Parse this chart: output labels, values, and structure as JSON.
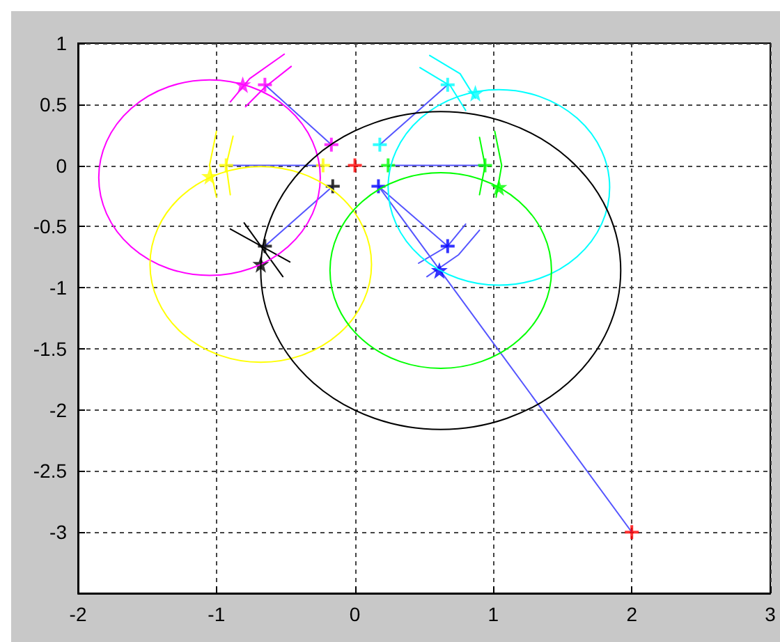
{
  "chart_data": {
    "type": "line",
    "xlim": [
      -2,
      3
    ],
    "ylim": [
      -3.5,
      1
    ],
    "xticks": [
      -2,
      -1,
      0,
      1,
      2,
      3
    ],
    "yticks": [
      -3,
      -2.5,
      -2,
      -1.5,
      -1,
      -0.5,
      0,
      0.5,
      1
    ],
    "grid": true,
    "line_style": "solid",
    "series": [
      {
        "type": "line",
        "color": "#ff00ff",
        "x": [
          -0.9,
          -0.76,
          -0.51
        ],
        "values": [
          0.52,
          0.71,
          0.91
        ]
      },
      {
        "type": "line",
        "color": "#ff00ff",
        "x": [
          -0.79,
          -0.65,
          -0.46
        ],
        "values": [
          0.48,
          0.64,
          0.81
        ]
      },
      {
        "type": "line",
        "color": "#ffff00",
        "x": [
          -1.0,
          -1.05,
          -1.0
        ],
        "values": [
          0.28,
          0,
          -0.26
        ]
      },
      {
        "type": "line",
        "color": "#ffff00",
        "x": [
          -0.93,
          -0.88
        ],
        "values": [
          0,
          0.24
        ]
      },
      {
        "type": "line",
        "color": "#ffff00",
        "x": [
          -0.93,
          -0.9
        ],
        "values": [
          0,
          -0.24
        ]
      },
      {
        "type": "line",
        "color": "#00ffff",
        "x": [
          0.47,
          0.69,
          0.8
        ],
        "values": [
          0.8,
          0.65,
          0.45
        ]
      },
      {
        "type": "line",
        "color": "#00ffff",
        "x": [
          0.54,
          0.76,
          0.87
        ],
        "values": [
          0.9,
          0.75,
          0.55
        ]
      },
      {
        "type": "line",
        "color": "#00ff00",
        "x": [
          0.9,
          0.94
        ],
        "values": [
          0.23,
          0
        ]
      },
      {
        "type": "line",
        "color": "#00ff00",
        "x": [
          0.9,
          0.94
        ],
        "values": [
          -0.24,
          0
        ]
      },
      {
        "type": "line",
        "color": "#00ff00",
        "x": [
          1.01,
          1.06,
          1.02
        ],
        "values": [
          0.28,
          0,
          -0.26
        ]
      },
      {
        "type": "line",
        "color": "#5555ff",
        "x": [
          0.46,
          0.67,
          0.8
        ],
        "values": [
          -0.8,
          -0.66,
          -0.48
        ]
      },
      {
        "type": "line",
        "color": "#5555ff",
        "x": [
          0.52,
          0.75,
          0.9
        ],
        "values": [
          -0.91,
          -0.73,
          -0.53
        ]
      },
      {
        "type": "line",
        "color": "#000000",
        "x": [
          -0.9,
          -0.47
        ],
        "values": [
          -0.52,
          -0.79
        ]
      },
      {
        "type": "line",
        "color": "#000000",
        "x": [
          -0.8,
          -0.52
        ],
        "values": [
          -0.47,
          -0.91
        ]
      },
      {
        "type": "line",
        "color": "#5555ff",
        "x": [
          -0.65,
          -0.17
        ],
        "values": [
          0.66,
          0.17
        ]
      },
      {
        "type": "line",
        "color": "#5555ff",
        "x": [
          -0.93,
          -0.23
        ],
        "values": [
          0,
          0
        ]
      },
      {
        "type": "line",
        "color": "#5555ff",
        "x": [
          -0.65,
          -0.16
        ],
        "values": [
          -0.66,
          -0.17
        ]
      },
      {
        "type": "line",
        "color": "#5555ff",
        "x": [
          0.18,
          0.67
        ],
        "values": [
          0.17,
          0.66
        ]
      },
      {
        "type": "line",
        "color": "#5555ff",
        "x": [
          0.24,
          0.94
        ],
        "values": [
          0,
          0
        ]
      },
      {
        "type": "line",
        "color": "#5555ff",
        "x": [
          0.17,
          0.67
        ],
        "values": [
          -0.17,
          -0.66
        ]
      },
      {
        "type": "line",
        "color": "#5555ff",
        "x": [
          0.17,
          2
        ],
        "values": [
          -0.17,
          -3
        ]
      },
      {
        "type": "scatter",
        "marker": "cross",
        "x": [
          -0.65,
          -0.17,
          -0.93,
          -0.23,
          -0.16,
          -0.65,
          0.18,
          0.67,
          0.24,
          0.94,
          0.17,
          0.67,
          0,
          2
        ],
        "values": [
          0.66,
          0.17,
          0,
          0,
          -0.17,
          -0.66,
          0.17,
          0.66,
          0,
          0,
          -0.17,
          -0.66,
          0,
          -3
        ],
        "colors": [
          "#ff00ff",
          "#ff00ff",
          "#ffff00",
          "#ffff00",
          "#000000",
          "#000000",
          "#00ffff",
          "#00ffff",
          "#00ff00",
          "#00ff00",
          "#0000ff",
          "#0000ff",
          "#ff0000",
          "#ff0000"
        ]
      },
      {
        "type": "scatter",
        "marker": "star",
        "x": [
          -0.81,
          -1.05,
          -0.68,
          0.87,
          1.04,
          0.61
        ],
        "values": [
          0.66,
          -0.09,
          -0.81,
          0.59,
          -0.18,
          -0.86
        ],
        "colors": [
          "#ff00ff",
          "#ffff00",
          "#000000",
          "#00ffff",
          "#00ff00",
          "#0000ff"
        ]
      }
    ]
  }
}
